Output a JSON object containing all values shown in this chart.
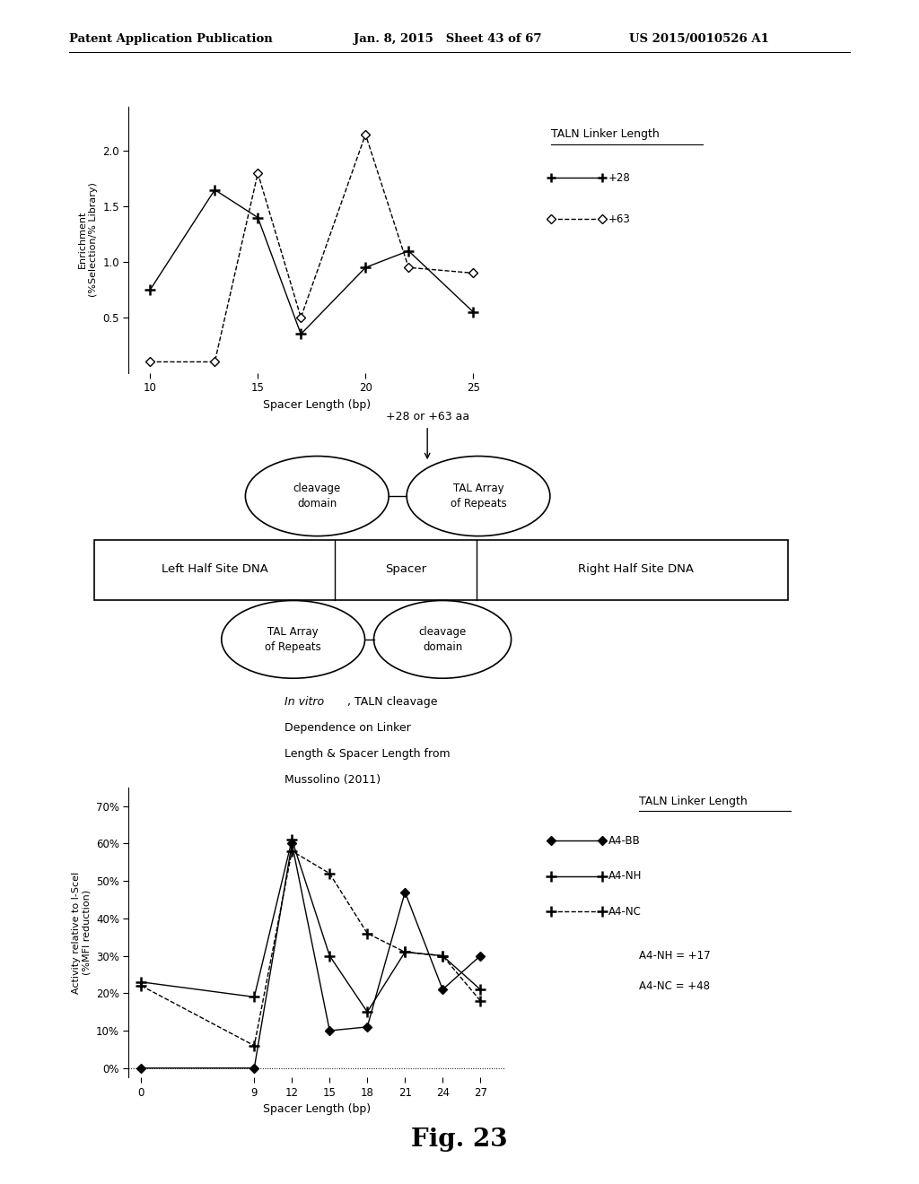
{
  "header_left": "Patent Application Publication",
  "header_mid": "Jan. 8, 2015   Sheet 43 of 67",
  "header_right": "US 2015/0010526 A1",
  "top_chart": {
    "x28": [
      10,
      13,
      15,
      17,
      20,
      22,
      25
    ],
    "y28": [
      0.75,
      1.65,
      1.4,
      0.35,
      0.95,
      1.1,
      0.55
    ],
    "x63": [
      10,
      13,
      15,
      17,
      20,
      22,
      25
    ],
    "y63": [
      0.1,
      0.1,
      1.8,
      0.5,
      2.15,
      0.95,
      0.9
    ],
    "xlabel": "Spacer Length (bp)",
    "ylabel": "Enrichment\n(%Selection/% Library)",
    "yticks": [
      0.5,
      1.0,
      1.5,
      2.0
    ],
    "xticks": [
      10,
      15,
      20,
      25
    ],
    "legend_title": "TALN Linker Length",
    "legend_p28": "+28",
    "legend_p63": "+63",
    "xlim": [
      9,
      26.5
    ],
    "ylim": [
      0.0,
      2.4
    ]
  },
  "diagram": {
    "arrow_label": "+28 or +63 aa",
    "top_left_text": "cleavage\ndomain",
    "top_right_text": "TAL Array\nof Repeats",
    "box_left": "Left Half Site DNA",
    "box_mid": "Spacer",
    "box_right": "Right Half Site DNA",
    "bot_left_text": "TAL Array\nof Repeats",
    "bot_right_text": "cleavage\ndomain",
    "caption_invitro": "In vitro",
    "caption_rest1": ", TALN cleavage",
    "caption_line2": "Dependence on Linker",
    "caption_line3": "Length & Spacer Length from",
    "caption_line4": "Mussolino (2011)"
  },
  "bottom_chart": {
    "xBB": [
      0,
      9,
      12,
      15,
      18,
      21,
      24,
      27
    ],
    "yBB": [
      0.0,
      0.0,
      0.6,
      0.1,
      0.11,
      0.47,
      0.21,
      0.3
    ],
    "xNH": [
      0,
      9,
      12,
      15,
      18,
      21,
      24,
      27
    ],
    "yNH": [
      0.23,
      0.19,
      0.61,
      0.3,
      0.15,
      0.31,
      0.3,
      0.21
    ],
    "xNC": [
      0,
      9,
      12,
      15,
      18,
      21,
      24,
      27
    ],
    "yNC": [
      0.22,
      0.06,
      0.58,
      0.52,
      0.36,
      0.31,
      0.3,
      0.18
    ],
    "xlabel": "Spacer Length (bp)",
    "ylabel": "Activity relative to I-SceI\n(%MFI reduction)",
    "ytick_vals": [
      0.0,
      0.1,
      0.2,
      0.3,
      0.4,
      0.5,
      0.6,
      0.7
    ],
    "ytick_labels": [
      "0%",
      "10%",
      "20%",
      "30%",
      "40%",
      "50%",
      "60%",
      "70%"
    ],
    "xticks": [
      0,
      9,
      12,
      15,
      18,
      21,
      24,
      27
    ],
    "legend_title": "TALN Linker Length",
    "legend_entries": [
      "A4-BB",
      "A4-NH",
      "A4-NC"
    ],
    "legend_extra": [
      "A4-NH = +17",
      "A4-NC = +48"
    ],
    "xlim": [
      -1,
      29
    ],
    "ylim": [
      -0.025,
      0.75
    ]
  },
  "fig_label": "Fig. 23",
  "bg": "#ffffff"
}
